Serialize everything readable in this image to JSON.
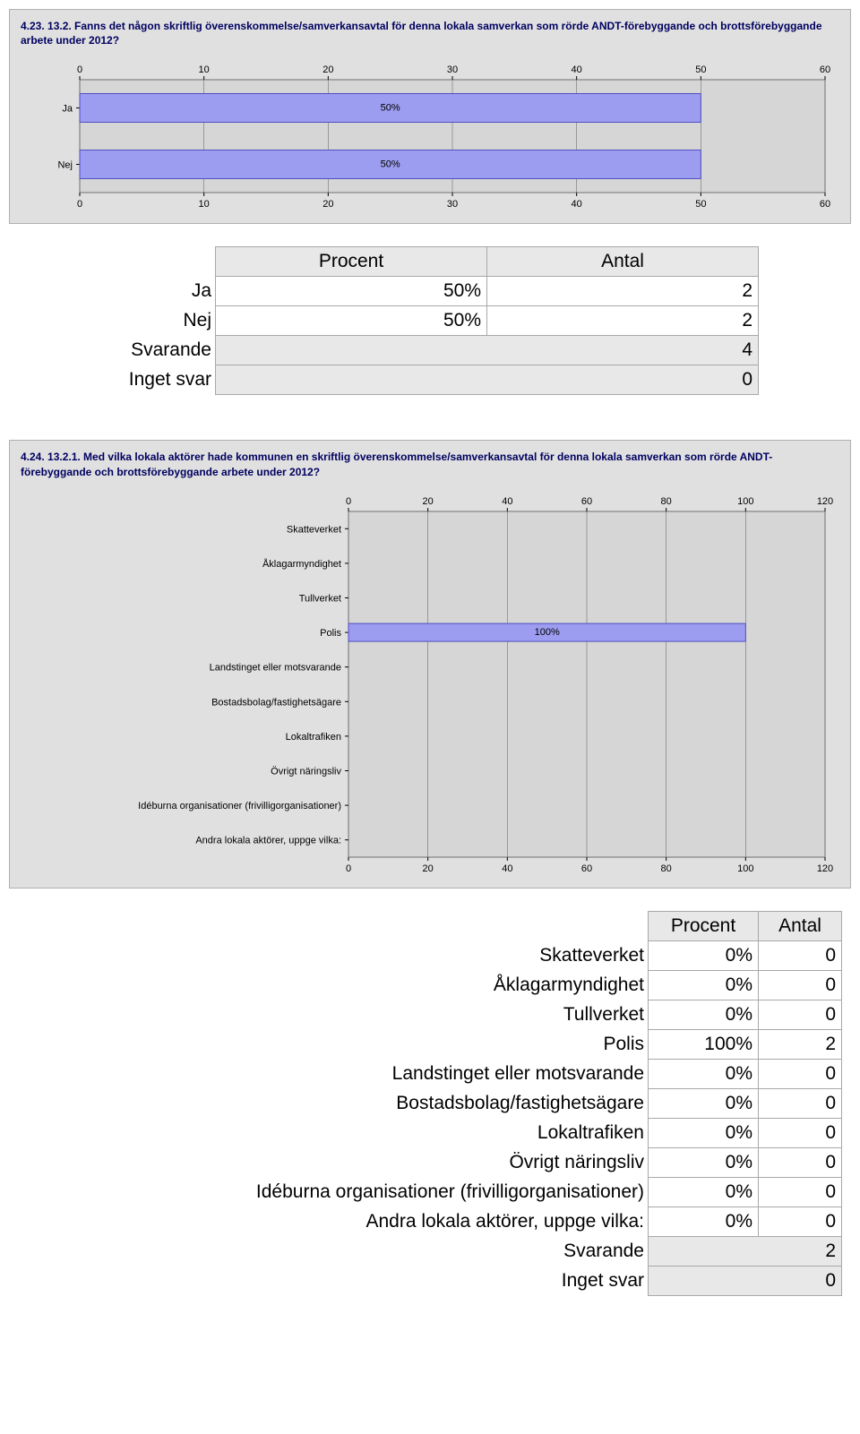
{
  "chart1": {
    "title": "4.23. 13.2. Fanns det någon skriftlig överenskommelse/samverkansavtal för denna lokala samverkan som rörde ANDT-förebyggande och brottsförebyggande arbete under 2012?",
    "xmax": 60,
    "xtick_step": 10,
    "bar_color": "#9c9cf0",
    "bar_border": "#5050c0",
    "plot_bg": "#d6d6d6",
    "categories": [
      "Ja",
      "Nej"
    ],
    "values": [
      50,
      50
    ],
    "labels": [
      "50%",
      "50%"
    ]
  },
  "table1": {
    "headers": [
      "Procent",
      "Antal"
    ],
    "rows": [
      {
        "label": "Ja",
        "procent": "50%",
        "antal": "2"
      },
      {
        "label": "Nej",
        "procent": "50%",
        "antal": "2"
      }
    ],
    "summary": [
      {
        "label": "Svarande",
        "val": "4"
      },
      {
        "label": "Inget svar",
        "val": "0"
      }
    ]
  },
  "chart2": {
    "title": "4.24. 13.2.1. Med vilka lokala aktörer hade kommunen en skriftlig överenskommelse/samverkansavtal för denna lokala samverkan som rörde ANDT-förebyggande och brottsförebyggande arbete under 2012?",
    "xmax": 120,
    "xtick_step": 20,
    "bar_color": "#9c9cf0",
    "bar_border": "#5050c0",
    "plot_bg": "#d6d6d6",
    "categories": [
      "Skatteverket",
      "Åklagarmyndighet",
      "Tullverket",
      "Polis",
      "Landstinget eller motsvarande",
      "Bostadsbolag/fastighetsägare",
      "Lokaltrafiken",
      "Övrigt näringsliv",
      "Idéburna organisationer (frivilligorganisationer)",
      "Andra lokala aktörer, uppge vilka:"
    ],
    "values": [
      0,
      0,
      0,
      100,
      0,
      0,
      0,
      0,
      0,
      0
    ],
    "labels": [
      "",
      "",
      "",
      "100%",
      "",
      "",
      "",
      "",
      "",
      ""
    ]
  },
  "table2": {
    "headers": [
      "Procent",
      "Antal"
    ],
    "rows": [
      {
        "label": "Skatteverket",
        "procent": "0%",
        "antal": "0"
      },
      {
        "label": "Åklagarmyndighet",
        "procent": "0%",
        "antal": "0"
      },
      {
        "label": "Tullverket",
        "procent": "0%",
        "antal": "0"
      },
      {
        "label": "Polis",
        "procent": "100%",
        "antal": "2"
      },
      {
        "label": "Landstinget eller motsvarande",
        "procent": "0%",
        "antal": "0"
      },
      {
        "label": "Bostadsbolag/fastighetsägare",
        "procent": "0%",
        "antal": "0"
      },
      {
        "label": "Lokaltrafiken",
        "procent": "0%",
        "antal": "0"
      },
      {
        "label": "Övrigt näringsliv",
        "procent": "0%",
        "antal": "0"
      },
      {
        "label": "Idéburna organisationer (frivilligorganisationer)",
        "procent": "0%",
        "antal": "0"
      },
      {
        "label": "Andra lokala aktörer, uppge vilka:",
        "procent": "0%",
        "antal": "0"
      }
    ],
    "summary": [
      {
        "label": "Svarande",
        "val": "2"
      },
      {
        "label": "Inget svar",
        "val": "0"
      }
    ]
  }
}
